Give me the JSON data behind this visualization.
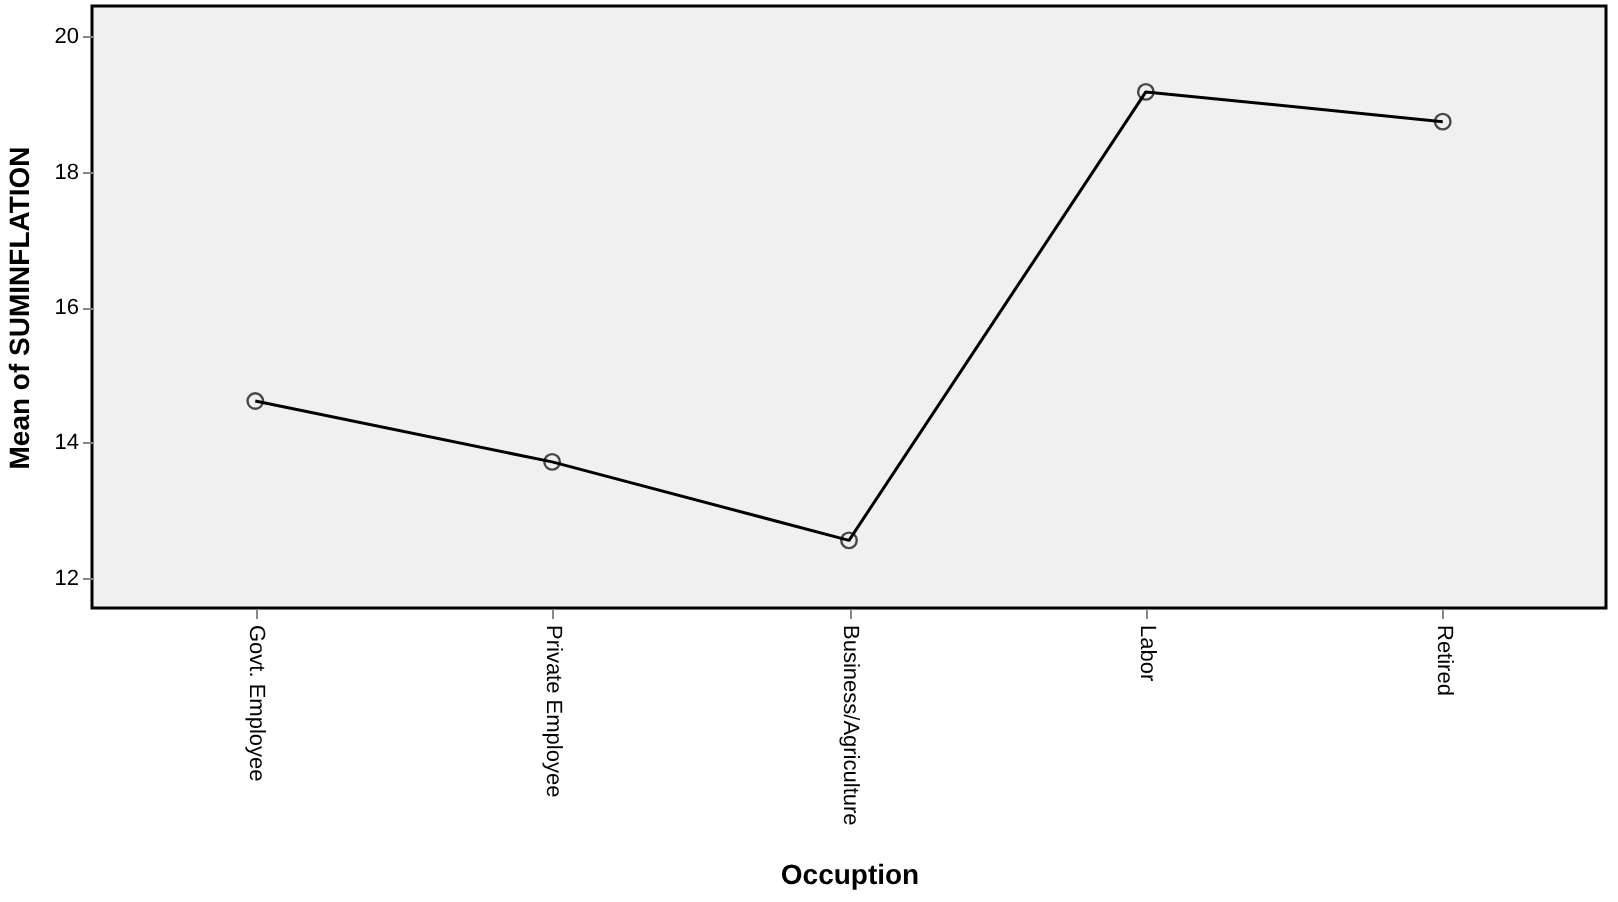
{
  "chart_data": {
    "type": "line",
    "xlabel": "Occuption",
    "ylabel": "Mean of SUMINFLATION",
    "categories": [
      "Govt. Employee",
      "Private Employee",
      "Business/Agriculture",
      "Labor",
      "Retired"
    ],
    "series": [
      {
        "color": "#000000",
        "values": [
          14.61,
          13.71,
          12.55,
          19.18,
          18.74
        ]
      }
    ],
    "ylim": [
      11.55,
      20.45
    ],
    "yticks": [
      12,
      14,
      16,
      18,
      20
    ],
    "marker": "circle",
    "line_style": "solid",
    "grid": false,
    "legend": false
  }
}
